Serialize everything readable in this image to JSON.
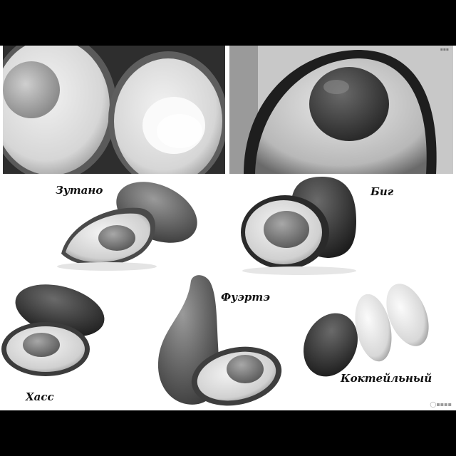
{
  "labels": {
    "zutano": "Зутано",
    "big": "Биг",
    "fuerte": "Фуэртэ",
    "hass": "Хасс",
    "cocktail": "Коктейльный"
  }
}
